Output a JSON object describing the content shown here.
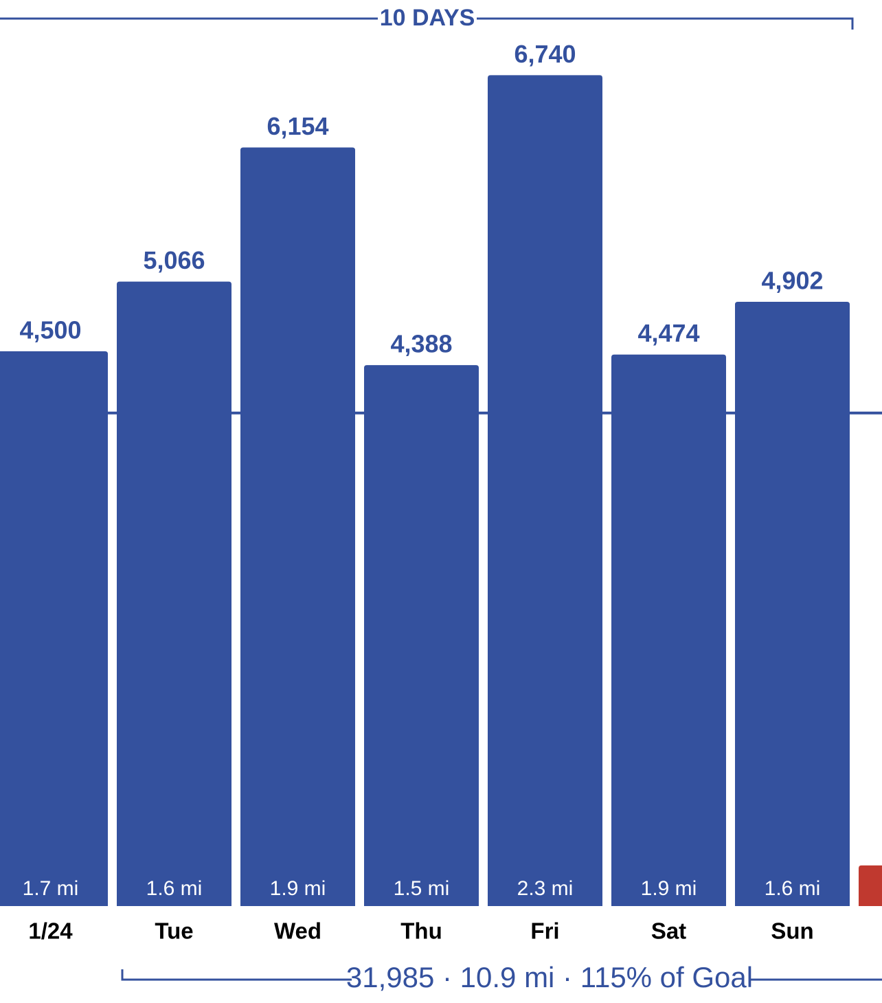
{
  "chart_data": {
    "type": "bar",
    "categories": [
      "1/24",
      "Tue",
      "Wed",
      "Thu",
      "Fri",
      "Sat",
      "Sun",
      null
    ],
    "values": [
      4500,
      5066,
      6154,
      4388,
      6740,
      4474,
      4902,
      330
    ],
    "value_labels": [
      "4,500",
      "5,066",
      "6,154",
      "4,388",
      "6,740",
      "4,474",
      "4,902",
      null
    ],
    "distance_labels": [
      "1.7 mi",
      "1.6 mi",
      "1.9 mi",
      "1.5 mi",
      "2.3 mi",
      "1.9 mi",
      "1.6 mi",
      null
    ],
    "colors": [
      "#34519e",
      "#34519e",
      "#34519e",
      "#34519e",
      "#34519e",
      "#34519e",
      "#34519e",
      "#c0392f"
    ],
    "goal_line": 4000,
    "ylim": [
      0,
      7350
    ],
    "top_bracket_label": "10 DAYS",
    "summary": "31,985 · 10.9 mi · 115% of Goal"
  }
}
